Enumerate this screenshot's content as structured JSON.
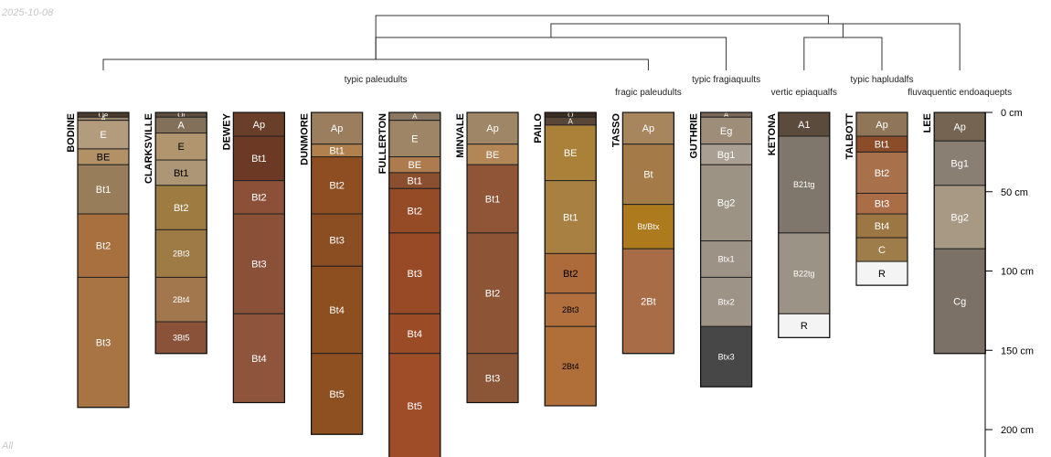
{
  "date_stamp": "2025-10-08",
  "corner_label": "All",
  "chart_data": {
    "type": "soil-profile-sketch",
    "depth_unit": "cm",
    "depth_axis": {
      "ticks": [
        0,
        50,
        100,
        150,
        200
      ],
      "tick_labels": [
        "0 cm",
        "50 cm",
        "100 cm",
        "150 cm",
        "200 cm"
      ],
      "max_depth": 218
    },
    "dendrogram": {
      "leaves": [
        "BODINE",
        "CLARKSVILLE",
        "DEWEY",
        "DUNMORE",
        "FULLERTON",
        "MINVALE",
        "PAILO",
        "TASSO",
        "GUTHRIE",
        "KETONA",
        "TALBOTT",
        "LEE"
      ],
      "merges": [
        {
          "left": 0,
          "right": 7,
          "height": 0.2
        },
        {
          "left": 12,
          "right": 8,
          "height": 0.6
        },
        {
          "left": 9,
          "right": 10,
          "height": 0.6
        },
        {
          "left": 13,
          "right": 14,
          "height": 0.85
        },
        {
          "left": 15,
          "right": 11,
          "height": 0.85
        },
        {
          "left": 12,
          "right": 16,
          "height": 1.0
        }
      ],
      "group_labels": [
        {
          "text": "typic paleudults",
          "profile": 3.5,
          "row": 0
        },
        {
          "text": "fragic paleudults",
          "profile": 7.0,
          "row": 1
        },
        {
          "text": "typic fragiaquults",
          "profile": 8.0,
          "row": 0
        },
        {
          "text": "vertic epiaqualfs",
          "profile": 9.0,
          "row": 1
        },
        {
          "text": "typic hapludalfs",
          "profile": 10.0,
          "row": 0
        },
        {
          "text": "fluvaquentic endoaquepts",
          "profile": 11.0,
          "row": 1
        }
      ]
    },
    "profiles": [
      {
        "name": "BODINE",
        "horizons": [
          {
            "name": "Oe",
            "top": 0,
            "bottom": 3,
            "color": "#4b3c2d",
            "label_color": "#ffffff"
          },
          {
            "name": "A",
            "top": 3,
            "bottom": 5,
            "color": "#9b8568",
            "label_color": "#ffffff"
          },
          {
            "name": "E",
            "top": 5,
            "bottom": 23,
            "color": "#b39b7d",
            "label_color": "#ffffff"
          },
          {
            "name": "BE",
            "top": 23,
            "bottom": 33,
            "color": "#b39167",
            "label_color": "#000000"
          },
          {
            "name": "Bt1",
            "top": 33,
            "bottom": 64,
            "color": "#987d5a",
            "label_color": "#ffffff"
          },
          {
            "name": "Bt2",
            "top": 64,
            "bottom": 104,
            "color": "#a9703f",
            "label_color": "#ffffff"
          },
          {
            "name": "Bt3",
            "top": 104,
            "bottom": 186,
            "color": "#a87444",
            "label_color": "#ffffff"
          }
        ]
      },
      {
        "name": "CLARKSVILLE",
        "horizons": [
          {
            "name": "Oi",
            "top": 0,
            "bottom": 3,
            "color": "#5d4e3f",
            "label_color": "#ffffff"
          },
          {
            "name": "A",
            "top": 3,
            "bottom": 13,
            "color": "#83705a",
            "label_color": "#ffffff"
          },
          {
            "name": "E",
            "top": 13,
            "bottom": 30,
            "color": "#b1956f",
            "label_color": "#000000"
          },
          {
            "name": "Bt1",
            "top": 30,
            "bottom": 46,
            "color": "#ad9675",
            "label_color": "#000000"
          },
          {
            "name": "Bt2",
            "top": 46,
            "bottom": 74,
            "color": "#9e7c41",
            "label_color": "#ffffff"
          },
          {
            "name": "2Bt3",
            "top": 74,
            "bottom": 104,
            "color": "#9e7a45",
            "label_color": "#ffffff"
          },
          {
            "name": "2Bt4",
            "top": 104,
            "bottom": 132,
            "color": "#a3774d",
            "label_color": "#ffffff"
          },
          {
            "name": "3Bt5",
            "top": 132,
            "bottom": 152,
            "color": "#8a5239",
            "label_color": "#ffffff"
          }
        ]
      },
      {
        "name": "DEWEY",
        "horizons": [
          {
            "name": "Ap",
            "top": 0,
            "bottom": 15,
            "color": "#693f2a",
            "label_color": "#ffffff"
          },
          {
            "name": "Bt1",
            "top": 15,
            "bottom": 43,
            "color": "#6b3924",
            "label_color": "#ffffff"
          },
          {
            "name": "Bt2",
            "top": 43,
            "bottom": 64,
            "color": "#8b5037",
            "label_color": "#ffffff"
          },
          {
            "name": "Bt3",
            "top": 64,
            "bottom": 127,
            "color": "#8a5138",
            "label_color": "#ffffff"
          },
          {
            "name": "Bt4",
            "top": 127,
            "bottom": 183,
            "color": "#8f543c",
            "label_color": "#ffffff"
          }
        ]
      },
      {
        "name": "DUNMORE",
        "horizons": [
          {
            "name": "Ap",
            "top": 0,
            "bottom": 20,
            "color": "#9b7e5e",
            "label_color": "#ffffff"
          },
          {
            "name": "Bt1",
            "top": 20,
            "bottom": 28,
            "color": "#b0814d",
            "label_color": "#ffffff"
          },
          {
            "name": "Bt2",
            "top": 28,
            "bottom": 64,
            "color": "#8e4e22",
            "label_color": "#ffffff"
          },
          {
            "name": "Bt3",
            "top": 64,
            "bottom": 97,
            "color": "#8b4e22",
            "label_color": "#ffffff"
          },
          {
            "name": "Bt4",
            "top": 97,
            "bottom": 152,
            "color": "#8d4e20",
            "label_color": "#ffffff"
          },
          {
            "name": "Bt5",
            "top": 152,
            "bottom": 203,
            "color": "#8f5021",
            "label_color": "#ffffff"
          }
        ]
      },
      {
        "name": "FULLERTON",
        "horizons": [
          {
            "name": "A",
            "top": 0,
            "bottom": 5,
            "color": "#8a7763",
            "label_color": "#ffffff"
          },
          {
            "name": "E",
            "top": 5,
            "bottom": 28,
            "color": "#9e8565",
            "label_color": "#ffffff"
          },
          {
            "name": "BE",
            "top": 28,
            "bottom": 38,
            "color": "#ad7b4d",
            "label_color": "#ffffff"
          },
          {
            "name": "Bt1",
            "top": 38,
            "bottom": 48,
            "color": "#8b4e2f",
            "label_color": "#ffffff"
          },
          {
            "name": "Bt2",
            "top": 48,
            "bottom": 76,
            "color": "#964b27",
            "label_color": "#ffffff"
          },
          {
            "name": "Bt3",
            "top": 76,
            "bottom": 127,
            "color": "#984a26",
            "label_color": "#ffffff"
          },
          {
            "name": "Bt4",
            "top": 127,
            "bottom": 152,
            "color": "#9c4b27",
            "label_color": "#ffffff"
          },
          {
            "name": "Bt5",
            "top": 152,
            "bottom": 218,
            "color": "#9f4c29",
            "label_color": "#ffffff"
          }
        ]
      },
      {
        "name": "MINVALE",
        "horizons": [
          {
            "name": "Ap",
            "top": 0,
            "bottom": 20,
            "color": "#9f8666",
            "label_color": "#ffffff"
          },
          {
            "name": "BE",
            "top": 20,
            "bottom": 33,
            "color": "#b38656",
            "label_color": "#ffffff"
          },
          {
            "name": "Bt1",
            "top": 33,
            "bottom": 76,
            "color": "#8f5536",
            "label_color": "#ffffff"
          },
          {
            "name": "Bt2",
            "top": 76,
            "bottom": 152,
            "color": "#8d5536",
            "label_color": "#ffffff"
          },
          {
            "name": "Bt3",
            "top": 152,
            "bottom": 183,
            "color": "#8b5537",
            "label_color": "#ffffff"
          }
        ]
      },
      {
        "name": "PAILO",
        "horizons": [
          {
            "name": "O",
            "top": 0,
            "bottom": 3,
            "color": "#3a2e24",
            "label_color": "#ffffff"
          },
          {
            "name": "A",
            "top": 3,
            "bottom": 8,
            "color": "#5a4636",
            "label_color": "#ffffff"
          },
          {
            "name": "BE",
            "top": 8,
            "bottom": 43,
            "color": "#ab8139",
            "label_color": "#ffffff"
          },
          {
            "name": "Bt1",
            "top": 43,
            "bottom": 89,
            "color": "#a78042",
            "label_color": "#ffffff"
          },
          {
            "name": "Bt2",
            "top": 89,
            "bottom": 114,
            "color": "#ad6a3a",
            "label_color": "#000000"
          },
          {
            "name": "2Bt3",
            "top": 114,
            "bottom": 135,
            "color": "#b06f3c",
            "label_color": "#000000"
          },
          {
            "name": "2Bt4",
            "top": 135,
            "bottom": 185,
            "color": "#b06e38",
            "label_color": "#000000"
          }
        ]
      },
      {
        "name": "TASSO",
        "horizons": [
          {
            "name": "Ap",
            "top": 0,
            "bottom": 20,
            "color": "#a7865e",
            "label_color": "#ffffff"
          },
          {
            "name": "Bt",
            "top": 20,
            "bottom": 58,
            "color": "#a47a48",
            "label_color": "#ffffff"
          },
          {
            "name": "Bt/Btx",
            "top": 58,
            "bottom": 86,
            "color": "#ad7a1e",
            "label_color": "#ffffff"
          },
          {
            "name": "2Bt",
            "top": 86,
            "bottom": 152,
            "color": "#a86c46",
            "label_color": "#ffffff"
          }
        ]
      },
      {
        "name": "GUTHRIE",
        "horizons": [
          {
            "name": "A",
            "top": 0,
            "bottom": 3,
            "color": "#7b6a59",
            "label_color": "#ffffff"
          },
          {
            "name": "Eg",
            "top": 3,
            "bottom": 20,
            "color": "#9e8d78",
            "label_color": "#ffffff"
          },
          {
            "name": "Bg1",
            "top": 20,
            "bottom": 33,
            "color": "#a9a093",
            "label_color": "#ffffff"
          },
          {
            "name": "Bg2",
            "top": 33,
            "bottom": 81,
            "color": "#9c9385",
            "label_color": "#ffffff"
          },
          {
            "name": "Btx1",
            "top": 81,
            "bottom": 104,
            "color": "#9c9386",
            "label_color": "#ffffff"
          },
          {
            "name": "Btx2",
            "top": 104,
            "bottom": 135,
            "color": "#9d9386",
            "label_color": "#ffffff"
          },
          {
            "name": "Btx3",
            "top": 135,
            "bottom": 173,
            "color": "#474747",
            "label_color": "#ffffff"
          }
        ]
      },
      {
        "name": "KETONA",
        "horizons": [
          {
            "name": "A1",
            "top": 0,
            "bottom": 15,
            "color": "#5b4b3c",
            "label_color": "#ffffff"
          },
          {
            "name": "B21tg",
            "top": 15,
            "bottom": 76,
            "color": "#7f776c",
            "label_color": "#ffffff"
          },
          {
            "name": "B22tg",
            "top": 76,
            "bottom": 127,
            "color": "#9b9386",
            "label_color": "#ffffff"
          },
          {
            "name": "R",
            "top": 127,
            "bottom": 142,
            "color": "#f4f4f4",
            "label_color": "#000000"
          }
        ]
      },
      {
        "name": "TALBOTT",
        "horizons": [
          {
            "name": "Ap",
            "top": 0,
            "bottom": 15,
            "color": "#8f7658",
            "label_color": "#ffffff"
          },
          {
            "name": "Bt1",
            "top": 15,
            "bottom": 25,
            "color": "#8b4c2a",
            "label_color": "#ffffff"
          },
          {
            "name": "Bt2",
            "top": 25,
            "bottom": 51,
            "color": "#a8704b",
            "label_color": "#ffffff"
          },
          {
            "name": "Bt3",
            "top": 51,
            "bottom": 64,
            "color": "#ab6d46",
            "label_color": "#ffffff"
          },
          {
            "name": "Bt4",
            "top": 64,
            "bottom": 79,
            "color": "#9d7743",
            "label_color": "#ffffff"
          },
          {
            "name": "C",
            "top": 79,
            "bottom": 94,
            "color": "#9f7d4b",
            "label_color": "#ffffff"
          },
          {
            "name": "R",
            "top": 94,
            "bottom": 109,
            "color": "#f4f4f4",
            "label_color": "#000000"
          }
        ]
      },
      {
        "name": "LEE",
        "horizons": [
          {
            "name": "Ap",
            "top": 0,
            "bottom": 18,
            "color": "#746451",
            "label_color": "#ffffff"
          },
          {
            "name": "Bg1",
            "top": 18,
            "bottom": 46,
            "color": "#8a7f73",
            "label_color": "#ffffff"
          },
          {
            "name": "Bg2",
            "top": 46,
            "bottom": 86,
            "color": "#a89985",
            "label_color": "#ffffff"
          },
          {
            "name": "Cg",
            "top": 86,
            "bottom": 152,
            "color": "#7b7167",
            "label_color": "#ffffff"
          }
        ]
      }
    ]
  }
}
